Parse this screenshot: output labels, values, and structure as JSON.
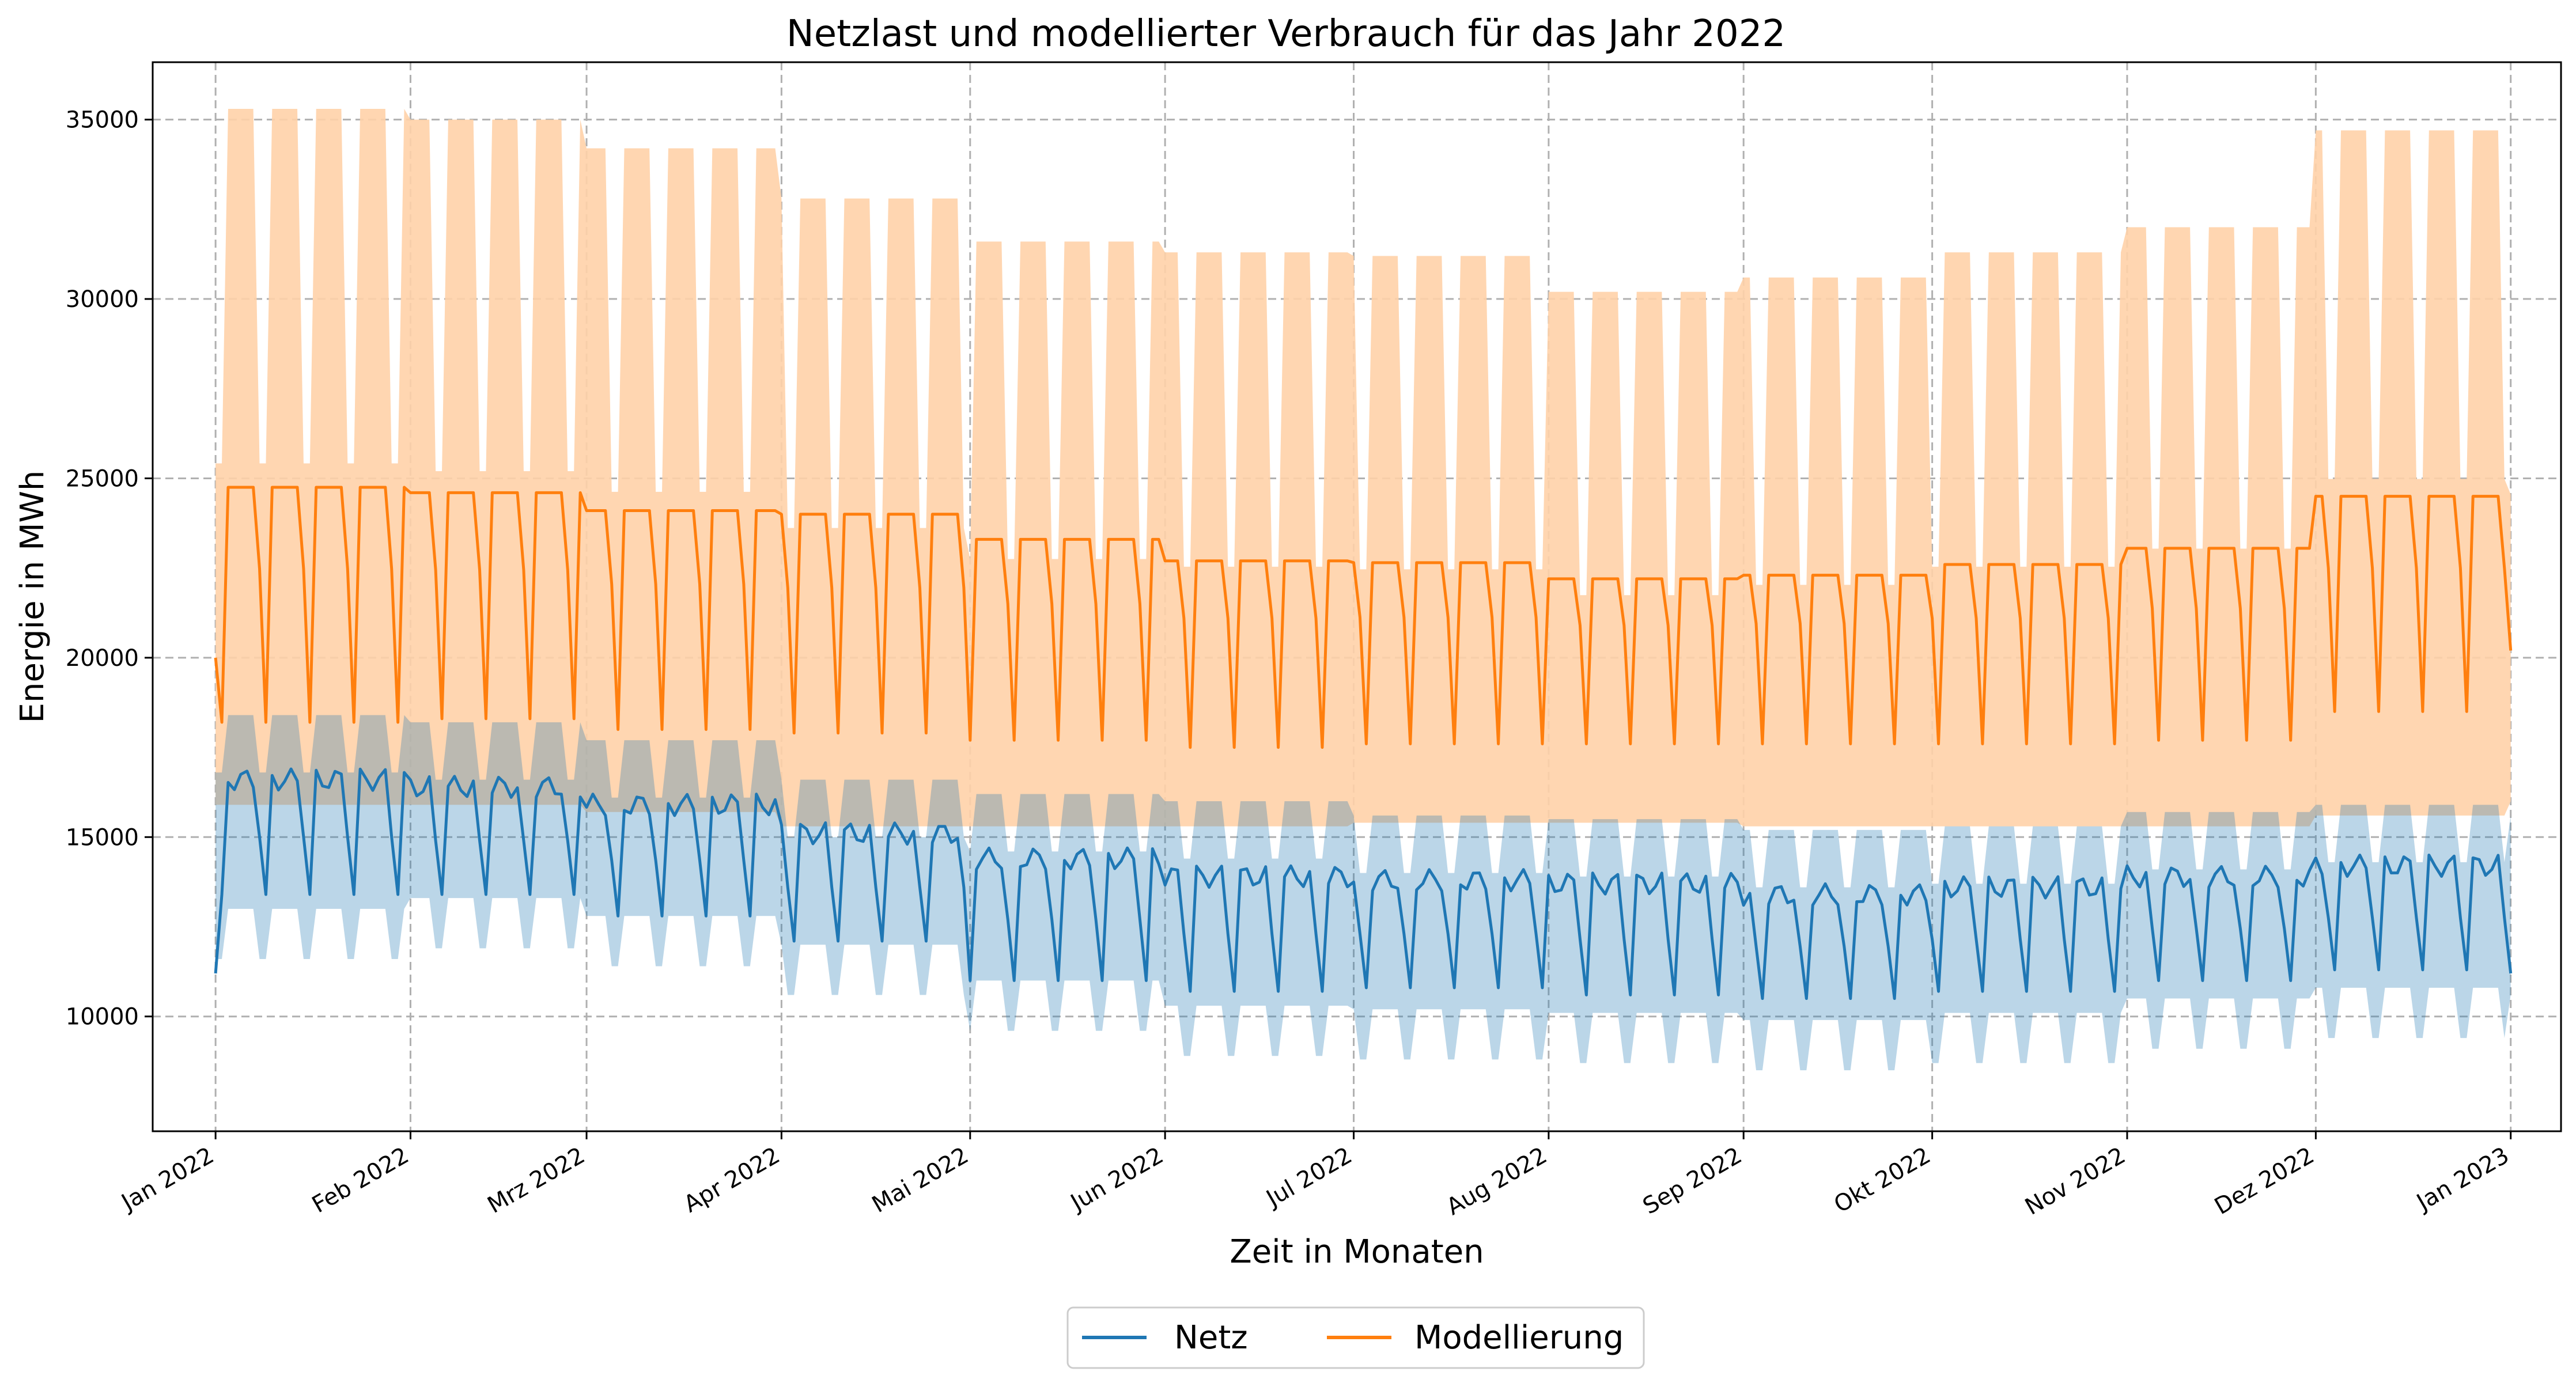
{
  "chart_data": {
    "type": "line",
    "title": "Netzlast und modellierter Verbrauch für das Jahr 2022",
    "xlabel": "Zeit in Monaten",
    "ylabel": "Energie in MWh",
    "ylim": [
      6800,
      36600
    ],
    "xlim": [
      "2021-12-22",
      "2023-01-09"
    ],
    "y_ticks": [
      10000,
      15000,
      20000,
      25000,
      30000,
      35000
    ],
    "x_tick_dates": [
      "2022-01-01",
      "2022-02-01",
      "2022-03-01",
      "2022-04-01",
      "2022-05-01",
      "2022-06-01",
      "2022-07-01",
      "2022-08-01",
      "2022-09-01",
      "2022-10-01",
      "2022-11-01",
      "2022-12-01",
      "2023-01-01"
    ],
    "x_tick_labels": [
      "Jan 2022",
      "Feb 2022",
      "Mrz 2022",
      "Apr 2022",
      "Mai 2022",
      "Jun 2022",
      "Jul 2022",
      "Aug 2022",
      "Sep 2022",
      "Okt 2022",
      "Nov 2022",
      "Dez 2022",
      "Jan 2023"
    ],
    "grid": true,
    "legend_position": "bottom-center",
    "series": [
      {
        "name": "Netz",
        "color": "#1f77b4",
        "band_color": "#a6c8e6",
        "monthly_weekday_mean": [
          16600,
          16400,
          15900,
          15100,
          14400,
          13900,
          13800,
          13700,
          13400,
          13600,
          13900,
          14200,
          15000,
          14900
        ],
        "weekend_level_mean": [
          13400,
          13400,
          12800,
          12100,
          11000,
          10700,
          10800,
          10600,
          10500,
          10700,
          11000,
          11300,
          12100,
          11000
        ],
        "band_low_mean": [
          12500,
          12800,
          12300,
          11500,
          10500,
          9800,
          9700,
          9600,
          9400,
          9600,
          10000,
          10300,
          11500,
          9800
        ],
        "band_high_mean": [
          18400,
          18200,
          17700,
          16600,
          16200,
          16000,
          15600,
          15500,
          15200,
          15300,
          15700,
          15900,
          17200,
          15700
        ],
        "start_value": 11200,
        "end_value": 11200
      },
      {
        "name": "Modellierung",
        "color": "#ff7f0e",
        "band_color": "#ffd2a9",
        "monthly_plateau": [
          24750,
          24600,
          24100,
          24000,
          23300,
          22700,
          22650,
          22200,
          22300,
          22600,
          23050,
          24500,
          24500,
          24500
        ],
        "monthly_trough": [
          18200,
          18300,
          18000,
          17900,
          17700,
          17500,
          17600,
          17600,
          17600,
          17600,
          17700,
          18500,
          18400,
          18400
        ],
        "band_high": [
          35300,
          35000,
          34200,
          32800,
          31600,
          31300,
          31200,
          30200,
          30600,
          31300,
          32000,
          34700,
          34100,
          34100
        ],
        "band_low": [
          15900,
          15900,
          15700,
          15300,
          15300,
          15300,
          15400,
          15400,
          15300,
          15300,
          15300,
          15600,
          16000,
          16000
        ],
        "start_value": 20000,
        "end_value": 20200
      }
    ]
  }
}
